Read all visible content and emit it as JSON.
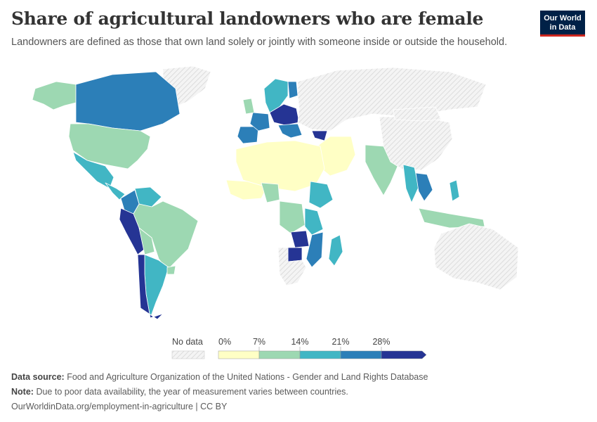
{
  "header": {
    "title": "Share of agricultural landowners who are female",
    "subtitle": "Landowners are defined as those that own land solely or jointly with someone inside or outside the household."
  },
  "logo": {
    "line1": "Our World",
    "line2": "in Data"
  },
  "colors": {
    "nodata_fill": "#f2f2f2",
    "nodata_hatch": "#d9d9d9",
    "bin_0_7": "#ffffc5",
    "bin_7_14": "#9dd8b2",
    "bin_14_21": "#41b6c4",
    "bin_21_28": "#2c7fb8",
    "bin_28_plus": "#253494"
  },
  "legend": {
    "nodata_label": "No data",
    "tick_labels": [
      "0%",
      "7%",
      "14%",
      "21%",
      "28%"
    ]
  },
  "footer": {
    "source_label": "Data source:",
    "source_text": "Food and Agriculture Organization of the United Nations - Gender and Land Rights Database",
    "note_label": "Note:",
    "note_text": "Due to poor data availability, the year of measurement varies between countries.",
    "link": "OurWorldinData.org/employment-in-agriculture | CC BY"
  },
  "chart_data": {
    "type": "choropleth",
    "unit": "%",
    "bins": [
      {
        "min": 0,
        "max": 7,
        "color": "#ffffc5"
      },
      {
        "min": 7,
        "max": 14,
        "color": "#9dd8b2"
      },
      {
        "min": 14,
        "max": 21,
        "color": "#41b6c4"
      },
      {
        "min": 21,
        "max": 28,
        "color": "#2c7fb8"
      },
      {
        "min": 28,
        "max": null,
        "color": "#253494"
      }
    ],
    "regions": [
      {
        "id": "greenland",
        "bin": null
      },
      {
        "id": "alaska",
        "bin": "7-14"
      },
      {
        "id": "canada",
        "bin": "21-28"
      },
      {
        "id": "usa",
        "bin": "7-14"
      },
      {
        "id": "mexico",
        "bin": "14-21"
      },
      {
        "id": "central-america",
        "bin": "14-21"
      },
      {
        "id": "venezuela",
        "bin": "14-21"
      },
      {
        "id": "colombia",
        "bin": "21-28"
      },
      {
        "id": "brazil",
        "bin": "7-14"
      },
      {
        "id": "peru",
        "bin": "28+"
      },
      {
        "id": "bolivia",
        "bin": "7-14"
      },
      {
        "id": "argentina",
        "bin": "14-21"
      },
      {
        "id": "chile",
        "bin": "28+"
      },
      {
        "id": "uruguay",
        "bin": "7-14"
      },
      {
        "id": "iberia",
        "bin": "21-28"
      },
      {
        "id": "france",
        "bin": "21-28"
      },
      {
        "id": "uk",
        "bin": "7-14"
      },
      {
        "id": "scandinavia",
        "bin": "14-21"
      },
      {
        "id": "finland",
        "bin": "21-28"
      },
      {
        "id": "central-europe",
        "bin": "28+"
      },
      {
        "id": "balkans",
        "bin": "21-28"
      },
      {
        "id": "turkey",
        "bin": "28+"
      },
      {
        "id": "russia",
        "bin": null
      },
      {
        "id": "middle-east",
        "bin": "0-7"
      },
      {
        "id": "india",
        "bin": "7-14"
      },
      {
        "id": "china",
        "bin": null
      },
      {
        "id": "mongolia",
        "bin": null
      },
      {
        "id": "myanmar",
        "bin": "14-21"
      },
      {
        "id": "indochina",
        "bin": "21-28"
      },
      {
        "id": "philippines",
        "bin": "14-21"
      },
      {
        "id": "indonesia",
        "bin": "7-14"
      },
      {
        "id": "australia",
        "bin": null
      },
      {
        "id": "north-africa",
        "bin": "0-7"
      },
      {
        "id": "west-africa",
        "bin": "0-7"
      },
      {
        "id": "nigeria",
        "bin": "7-14"
      },
      {
        "id": "ethiopia",
        "bin": "14-21"
      },
      {
        "id": "drc",
        "bin": "7-14"
      },
      {
        "id": "tanzania",
        "bin": "14-21"
      },
      {
        "id": "malawi-mozambique",
        "bin": "21-28"
      },
      {
        "id": "zambia",
        "bin": "28+"
      },
      {
        "id": "zimbabwe",
        "bin": "28+"
      },
      {
        "id": "madagascar",
        "bin": "14-21"
      },
      {
        "id": "southern-africa",
        "bin": null
      }
    ]
  }
}
